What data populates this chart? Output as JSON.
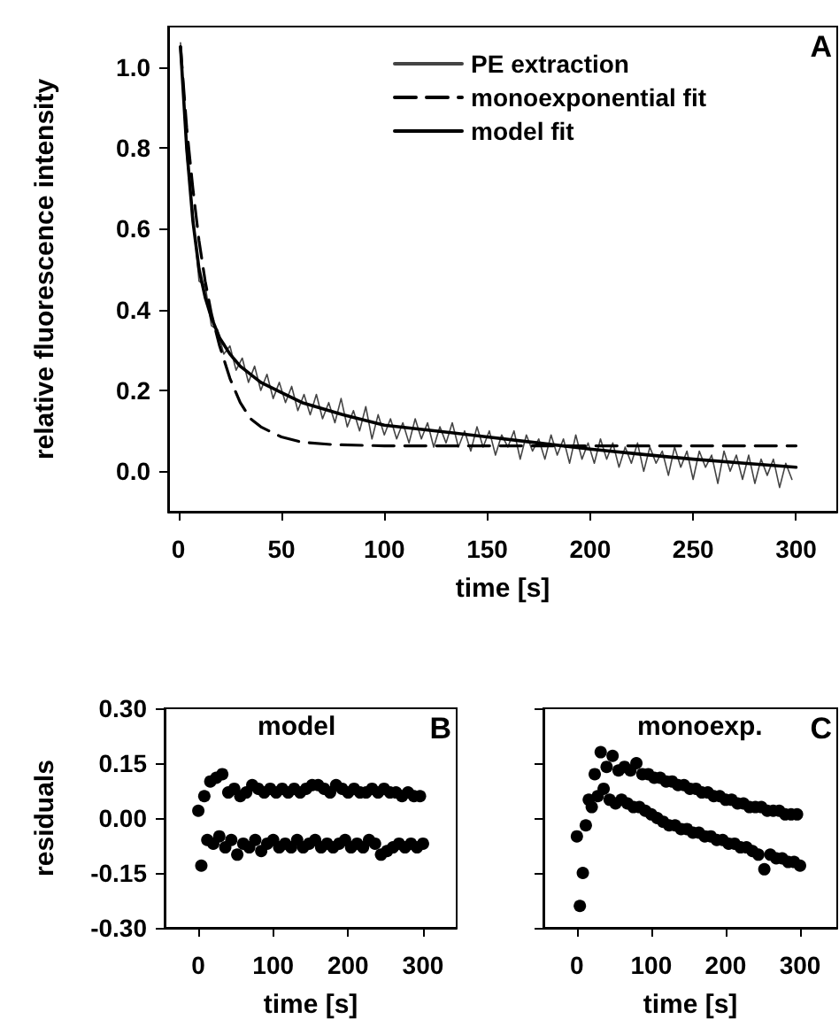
{
  "chart_data": [
    {
      "type": "line",
      "xlabel": "time [s]",
      "ylabel": "relative fluorescence intensity",
      "annotations": [
        "A"
      ],
      "legend": "top right",
      "marker": "none",
      "grid": false,
      "xlim": [
        -5,
        320
      ],
      "xticks": [
        0,
        50,
        100,
        150,
        200,
        250,
        300
      ],
      "ylim": [
        -0.1,
        1.1
      ],
      "yticks": [
        {
          "value": 0,
          "label": "0.0"
        },
        {
          "value": 0.2,
          "label": "0.2"
        },
        {
          "value": 0.4,
          "label": "0.4"
        },
        {
          "value": 0.6,
          "label": "0.6"
        },
        {
          "value": 0.8,
          "label": "0.8"
        },
        {
          "value": 1,
          "label": "1.0"
        }
      ],
      "series": [
        {
          "name": "PE extraction",
          "color": "#444444",
          "line_style": "solid",
          "x": [
            1,
            4,
            7,
            10,
            13,
            16,
            19,
            22,
            25,
            28,
            31,
            34,
            37,
            40,
            43,
            46,
            49,
            52,
            55,
            58,
            61,
            64,
            67,
            70,
            73,
            76,
            79,
            82,
            85,
            88,
            91,
            94,
            97,
            100,
            103,
            106,
            109,
            112,
            115,
            118,
            121,
            124,
            127,
            130,
            133,
            136,
            139,
            142,
            145,
            148,
            151,
            154,
            157,
            160,
            163,
            166,
            169,
            172,
            175,
            178,
            181,
            184,
            187,
            190,
            193,
            196,
            199,
            202,
            205,
            208,
            211,
            214,
            217,
            220,
            223,
            226,
            229,
            232,
            235,
            238,
            241,
            244,
            247,
            250,
            253,
            256,
            259,
            262,
            265,
            268,
            271,
            274,
            277,
            280,
            283,
            286,
            289,
            292,
            295,
            298
          ],
          "values": [
            1.06,
            0.78,
            0.64,
            0.47,
            0.46,
            0.36,
            0.35,
            0.29,
            0.31,
            0.25,
            0.28,
            0.22,
            0.26,
            0.2,
            0.24,
            0.18,
            0.22,
            0.17,
            0.21,
            0.15,
            0.19,
            0.14,
            0.19,
            0.13,
            0.17,
            0.12,
            0.18,
            0.11,
            0.15,
            0.1,
            0.16,
            0.08,
            0.14,
            0.09,
            0.13,
            0.08,
            0.12,
            0.07,
            0.13,
            0.08,
            0.12,
            0.06,
            0.11,
            0.07,
            0.12,
            0.06,
            0.1,
            0.05,
            0.11,
            0.06,
            0.1,
            0.04,
            0.09,
            0.06,
            0.1,
            0.03,
            0.09,
            0.05,
            0.08,
            0.03,
            0.09,
            0.04,
            0.08,
            0.02,
            0.09,
            0.03,
            0.07,
            0.02,
            0.08,
            0.03,
            0.07,
            0.01,
            0.06,
            0.02,
            0.07,
            0.0,
            0.06,
            0.02,
            0.05,
            -0.01,
            0.06,
            0.01,
            0.05,
            -0.02,
            0.05,
            0.01,
            0.04,
            -0.03,
            0.05,
            0.0,
            0.04,
            -0.02,
            0.04,
            -0.03,
            0.03,
            -0.01,
            0.03,
            -0.04,
            0.02,
            -0.02
          ]
        },
        {
          "name": "monoexponential fit",
          "color": "#000000",
          "line_style": "dashed",
          "x": [
            1,
            4,
            7,
            10,
            13,
            16,
            20,
            25,
            30,
            35,
            40,
            50,
            60,
            75,
            100,
            150,
            200,
            250,
            300
          ],
          "values": [
            1.05,
            0.85,
            0.7,
            0.57,
            0.47,
            0.39,
            0.31,
            0.23,
            0.17,
            0.13,
            0.11,
            0.085,
            0.072,
            0.066,
            0.063,
            0.063,
            0.063,
            0.063,
            0.063
          ]
        },
        {
          "name": "model fit",
          "color": "#000000",
          "line_style": "solid",
          "x": [
            1,
            4,
            7,
            10,
            13,
            16,
            20,
            25,
            30,
            40,
            50,
            60,
            80,
            100,
            125,
            150,
            175,
            200,
            225,
            250,
            275,
            300
          ],
          "values": [
            1.05,
            0.8,
            0.62,
            0.5,
            0.43,
            0.38,
            0.33,
            0.29,
            0.26,
            0.22,
            0.195,
            0.17,
            0.14,
            0.114,
            0.1,
            0.085,
            0.07,
            0.055,
            0.042,
            0.03,
            0.02,
            0.01
          ]
        }
      ]
    },
    {
      "type": "scatter",
      "xlabel": "time [s]",
      "ylabel": "residuals",
      "annotations": [
        "model",
        "B"
      ],
      "marker": "circle",
      "grid": false,
      "xlim": [
        -45,
        345
      ],
      "xticks": [
        0,
        100,
        200,
        300
      ],
      "ylim": [
        -0.3,
        0.3
      ],
      "yticks": [
        {
          "value": -0.3,
          "label": "-0.30"
        },
        {
          "value": -0.15,
          "label": "-0.15"
        },
        {
          "value": 0,
          "label": "0.00"
        },
        {
          "value": 0.15,
          "label": "0.15"
        },
        {
          "value": 0.3,
          "label": "0.30"
        }
      ],
      "series": [
        {
          "color": "#000000",
          "x": [
            0,
            4,
            8,
            12,
            16,
            20,
            24,
            28,
            32,
            36,
            40,
            44,
            48,
            52,
            56,
            60,
            64,
            68,
            72,
            76,
            80,
            84,
            88,
            92,
            96,
            100,
            104,
            108,
            112,
            116,
            120,
            124,
            128,
            132,
            136,
            140,
            144,
            148,
            152,
            156,
            160,
            164,
            168,
            172,
            176,
            180,
            184,
            188,
            192,
            196,
            200,
            204,
            208,
            212,
            216,
            220,
            224,
            228,
            232,
            236,
            240,
            244,
            248,
            252,
            256,
            260,
            264,
            268,
            272,
            276,
            280,
            284,
            288,
            292,
            296,
            300
          ],
          "values": [
            0.02,
            -0.13,
            0.06,
            -0.06,
            0.1,
            -0.07,
            0.11,
            -0.05,
            0.12,
            -0.08,
            0.07,
            -0.06,
            0.08,
            -0.1,
            0.06,
            -0.07,
            0.07,
            -0.08,
            0.09,
            -0.06,
            0.08,
            -0.09,
            0.07,
            -0.07,
            0.08,
            -0.06,
            0.07,
            -0.08,
            0.08,
            -0.07,
            0.07,
            -0.08,
            0.08,
            -0.06,
            0.07,
            -0.08,
            0.08,
            -0.07,
            0.09,
            -0.06,
            0.09,
            -0.08,
            0.08,
            -0.07,
            0.07,
            -0.08,
            0.09,
            -0.07,
            0.08,
            -0.06,
            0.07,
            -0.08,
            0.08,
            -0.07,
            0.07,
            -0.08,
            0.07,
            -0.06,
            0.08,
            -0.07,
            0.07,
            -0.1,
            0.08,
            -0.09,
            0.07,
            -0.08,
            0.07,
            -0.07,
            0.06,
            -0.08,
            0.07,
            -0.07,
            0.06,
            -0.08,
            0.06,
            -0.07
          ]
        }
      ]
    },
    {
      "type": "scatter",
      "xlabel": "time [s]",
      "annotations": [
        "monoexp.",
        "C"
      ],
      "marker": "circle",
      "grid": false,
      "tick_labels": "x",
      "xlim": [
        -45,
        350
      ],
      "xticks": [
        0,
        100,
        200,
        300
      ],
      "ylim": [
        -0.3,
        0.3
      ],
      "yticks": [
        {
          "value": -0.3,
          "label": null
        },
        {
          "value": -0.15,
          "label": null
        },
        {
          "value": 0,
          "label": null
        },
        {
          "value": 0.15,
          "label": null
        },
        {
          "value": 0.3,
          "label": null
        }
      ],
      "series": [
        {
          "color": "#000000",
          "x": [
            0,
            4,
            8,
            12,
            16,
            20,
            24,
            28,
            32,
            36,
            40,
            44,
            48,
            52,
            56,
            60,
            64,
            68,
            72,
            76,
            80,
            84,
            88,
            92,
            96,
            100,
            104,
            108,
            112,
            116,
            120,
            124,
            128,
            132,
            136,
            140,
            144,
            148,
            152,
            156,
            160,
            164,
            168,
            172,
            176,
            180,
            184,
            188,
            192,
            196,
            200,
            204,
            208,
            212,
            216,
            220,
            224,
            228,
            232,
            236,
            240,
            244,
            248,
            252,
            256,
            260,
            264,
            268,
            272,
            276,
            280,
            284,
            288,
            292,
            296,
            300
          ],
          "values": [
            -0.05,
            -0.24,
            -0.15,
            -0.02,
            0.05,
            0.03,
            0.12,
            0.06,
            0.18,
            0.08,
            0.14,
            0.05,
            0.17,
            0.04,
            0.13,
            0.05,
            0.14,
            0.04,
            0.13,
            0.03,
            0.15,
            0.03,
            0.12,
            0.02,
            0.12,
            0.01,
            0.11,
            0.0,
            0.11,
            -0.01,
            0.1,
            -0.02,
            0.1,
            -0.02,
            0.09,
            -0.03,
            0.09,
            -0.03,
            0.08,
            -0.04,
            0.08,
            -0.04,
            0.07,
            -0.05,
            0.07,
            -0.05,
            0.06,
            -0.06,
            0.06,
            -0.06,
            0.05,
            -0.07,
            0.05,
            -0.07,
            0.04,
            -0.08,
            0.04,
            -0.08,
            0.03,
            -0.09,
            0.03,
            -0.1,
            0.03,
            -0.14,
            0.02,
            -0.1,
            0.02,
            -0.11,
            0.02,
            -0.11,
            0.01,
            -0.12,
            0.01,
            -0.12,
            0.01,
            -0.13
          ]
        }
      ]
    }
  ]
}
